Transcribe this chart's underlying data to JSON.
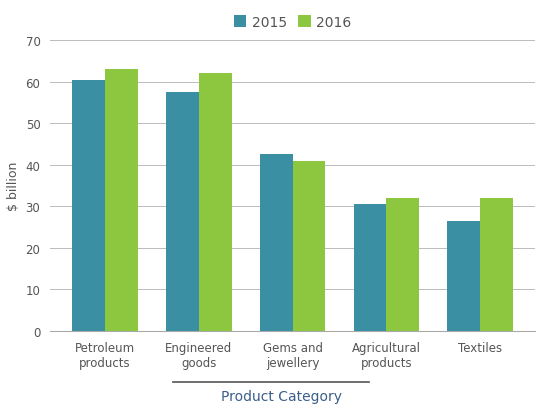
{
  "categories": [
    "Petroleum\nproducts",
    "Engineered\ngoods",
    "Gems and\njewellery",
    "Agricultural\nproducts",
    "Textiles"
  ],
  "values_2015": [
    60.5,
    57.5,
    42.5,
    30.5,
    26.5
  ],
  "values_2016": [
    63.0,
    62.0,
    41.0,
    32.0,
    32.0
  ],
  "color_2015": "#3a8fa3",
  "color_2016": "#8dc63f",
  "ylabel": "$ billion",
  "xlabel": "Product Category",
  "ylim": [
    0,
    70
  ],
  "yticks": [
    0,
    10,
    20,
    30,
    40,
    50,
    60,
    70
  ],
  "legend_labels": [
    "2015",
    "2016"
  ],
  "bar_width": 0.35,
  "figsize": [
    5.42,
    4.1
  ],
  "dpi": 100,
  "bg_color": "#ffffff",
  "tick_color": "#555555",
  "xlabel_color": "#3a5f8a",
  "grid_color": "#bbbbbb",
  "spine_color": "#aaaaaa"
}
